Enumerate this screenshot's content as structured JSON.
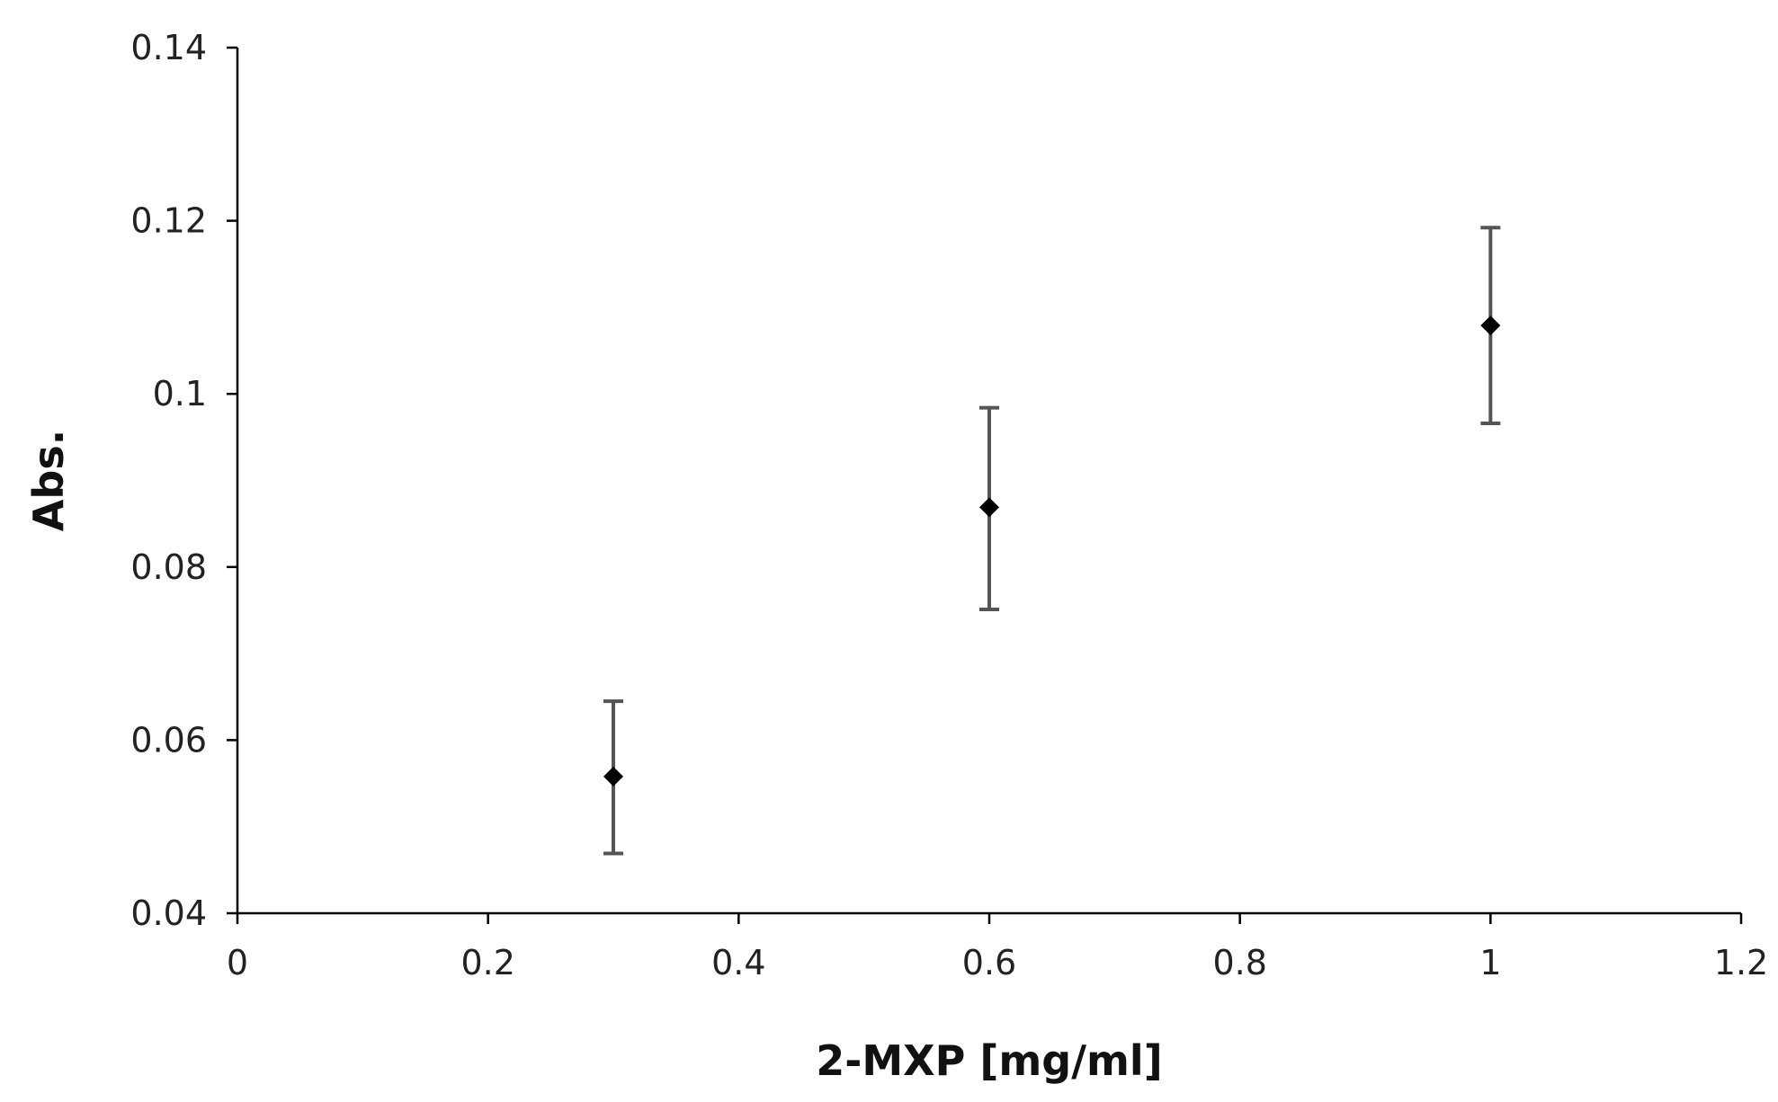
{
  "chart_data": {
    "type": "scatter",
    "title": "",
    "xlabel": "2-MXP [mg/ml]",
    "ylabel": "Abs.",
    "xlim": [
      0,
      1.2
    ],
    "ylim": [
      0.04,
      0.14
    ],
    "x_ticks": [
      "0",
      "0.2",
      "0.4",
      "0.6",
      "0.8",
      "1",
      "1.2"
    ],
    "y_ticks": [
      "0.04",
      "0.06",
      "0.08",
      "0.1",
      "0.12",
      "0.14"
    ],
    "grid": false,
    "legend": "none",
    "marker": "diamond",
    "series": [
      {
        "points": [
          {
            "x": 0.3,
            "y": 0.0558,
            "err_low": 0.0469,
            "err_high": 0.0645
          },
          {
            "x": 0.6,
            "y": 0.0869,
            "err_low": 0.0751,
            "err_high": 0.0984
          },
          {
            "x": 1.0,
            "y": 0.1079,
            "err_low": 0.0966,
            "err_high": 0.1192
          }
        ]
      }
    ],
    "colors": {
      "marker": "#000000",
      "error_bar": "#555555",
      "axis": "#000000"
    }
  }
}
